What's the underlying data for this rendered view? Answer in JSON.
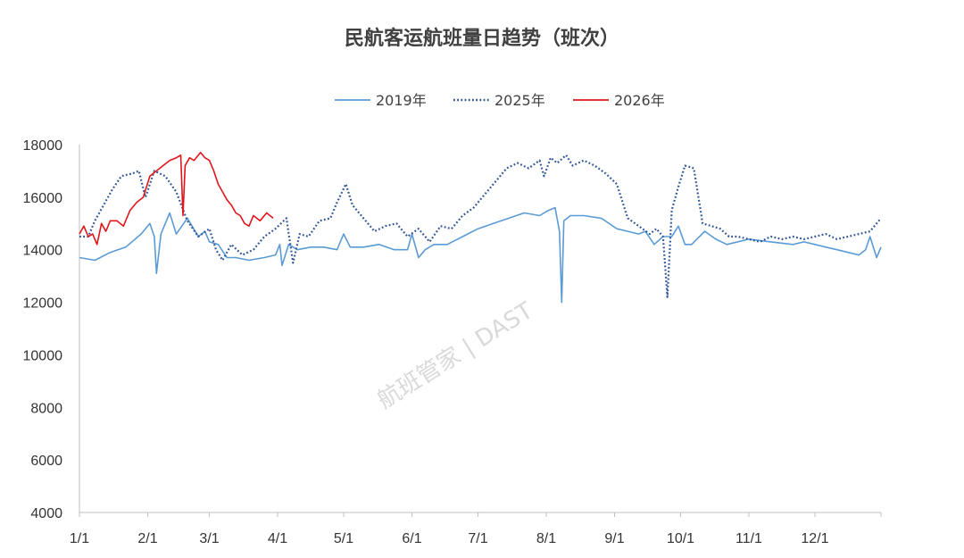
{
  "chart_data": {
    "type": "line",
    "title": "民航客运航班量日趋势（班次）",
    "xlabel": "",
    "ylabel": "",
    "ylim": [
      4000,
      18000
    ],
    "yticks": [
      4000,
      6000,
      8000,
      10000,
      12000,
      14000,
      16000,
      18000
    ],
    "xticks": [
      "1/1",
      "2/1",
      "3/1",
      "4/1",
      "5/1",
      "6/1",
      "7/1",
      "8/1",
      "9/1",
      "10/1",
      "11/1",
      "12/1"
    ],
    "x_unit": "day of year (1 = 1/1)",
    "legend_position": "top-center",
    "grid": false,
    "watermark": "航班管家 | DAST",
    "series": [
      {
        "name": "2019年",
        "color": "#5b9bd5",
        "style": "solid",
        "x": [
          1,
          8,
          15,
          22,
          29,
          33,
          35,
          36,
          38,
          42,
          45,
          50,
          55,
          58,
          60,
          64,
          68,
          72,
          78,
          85,
          90,
          92,
          93,
          96,
          100,
          106,
          112,
          118,
          121,
          124,
          130,
          137,
          144,
          150,
          152,
          155,
          158,
          162,
          168,
          175,
          182,
          189,
          196,
          203,
          210,
          214,
          217,
          219,
          220,
          221,
          224,
          230,
          238,
          245,
          250,
          255,
          258,
          262,
          266,
          270,
          273,
          276,
          279,
          285,
          290,
          295,
          305,
          315,
          325,
          330,
          335,
          340,
          345,
          350,
          355,
          358,
          360,
          363,
          365
        ],
        "y": [
          13700,
          13600,
          13900,
          14100,
          14600,
          15000,
          14500,
          13100,
          14600,
          15400,
          14600,
          15200,
          14500,
          14700,
          14300,
          14200,
          13700,
          13700,
          13600,
          13700,
          13800,
          14200,
          13400,
          14200,
          14000,
          14100,
          14100,
          14000,
          14600,
          14100,
          14100,
          14200,
          14000,
          14000,
          14600,
          13700,
          14000,
          14200,
          14200,
          14500,
          14800,
          15000,
          15200,
          15400,
          15300,
          15500,
          15600,
          14700,
          12000,
          15100,
          15300,
          15300,
          15200,
          14800,
          14700,
          14600,
          14700,
          14200,
          14500,
          14500,
          14900,
          14200,
          14200,
          14700,
          14400,
          14200,
          14400,
          14300,
          14200,
          14300,
          14200,
          14100,
          14000,
          13900,
          13800,
          14000,
          14500,
          13700,
          14100
        ]
      },
      {
        "name": "2025年",
        "color": "#2f5597",
        "style": "dotted",
        "x": [
          1,
          5,
          8,
          12,
          16,
          20,
          25,
          28,
          31,
          35,
          40,
          45,
          50,
          55,
          60,
          63,
          66,
          70,
          75,
          80,
          85,
          90,
          95,
          98,
          101,
          105,
          110,
          115,
          118,
          122,
          125,
          130,
          135,
          140,
          145,
          150,
          155,
          160,
          165,
          170,
          175,
          180,
          185,
          190,
          195,
          200,
          205,
          210,
          212,
          215,
          218,
          222,
          225,
          230,
          235,
          240,
          245,
          250,
          255,
          260,
          263,
          266,
          268,
          270,
          273,
          276,
          280,
          284,
          288,
          292,
          296,
          300,
          305,
          310,
          315,
          320,
          325,
          330,
          335,
          340,
          345,
          350,
          355,
          360,
          365
        ],
        "y": [
          14500,
          14500,
          15100,
          15700,
          16300,
          16800,
          16900,
          17000,
          16000,
          17000,
          16800,
          16200,
          15100,
          14500,
          14800,
          14000,
          13600,
          14200,
          13800,
          14000,
          14500,
          14800,
          15200,
          13500,
          14600,
          14500,
          15100,
          15200,
          15800,
          16500,
          15700,
          15200,
          14700,
          14900,
          15000,
          14500,
          14800,
          14300,
          14900,
          14800,
          15300,
          15600,
          16100,
          16600,
          17100,
          17300,
          17100,
          17400,
          16800,
          17500,
          17300,
          17600,
          17200,
          17400,
          17200,
          16900,
          16500,
          15200,
          14900,
          14600,
          14800,
          14500,
          12200,
          15500,
          16400,
          17200,
          17100,
          15000,
          14900,
          14800,
          14500,
          14500,
          14400,
          14300,
          14500,
          14400,
          14500,
          14400,
          14500,
          14600,
          14400,
          14500,
          14600,
          14700,
          15200
        ]
      },
      {
        "name": "2026年",
        "color": "#e0161b",
        "style": "solid",
        "x": [
          1,
          3,
          5,
          7,
          9,
          11,
          13,
          15,
          18,
          21,
          24,
          27,
          30,
          33,
          36,
          39,
          42,
          45,
          47,
          48,
          49,
          51,
          53,
          56,
          58,
          60,
          62,
          64,
          66,
          68,
          70,
          72,
          74,
          76,
          78,
          80,
          83,
          86,
          89
        ],
        "y": [
          14600,
          14900,
          14500,
          14600,
          14200,
          15000,
          14700,
          15100,
          15100,
          14900,
          15500,
          15800,
          16000,
          16800,
          17000,
          17200,
          17400,
          17500,
          17600,
          15300,
          17200,
          17500,
          17400,
          17700,
          17500,
          17400,
          17000,
          16500,
          16200,
          15900,
          15700,
          15400,
          15300,
          15000,
          14900,
          15300,
          15100,
          15400,
          15200
        ]
      }
    ]
  }
}
